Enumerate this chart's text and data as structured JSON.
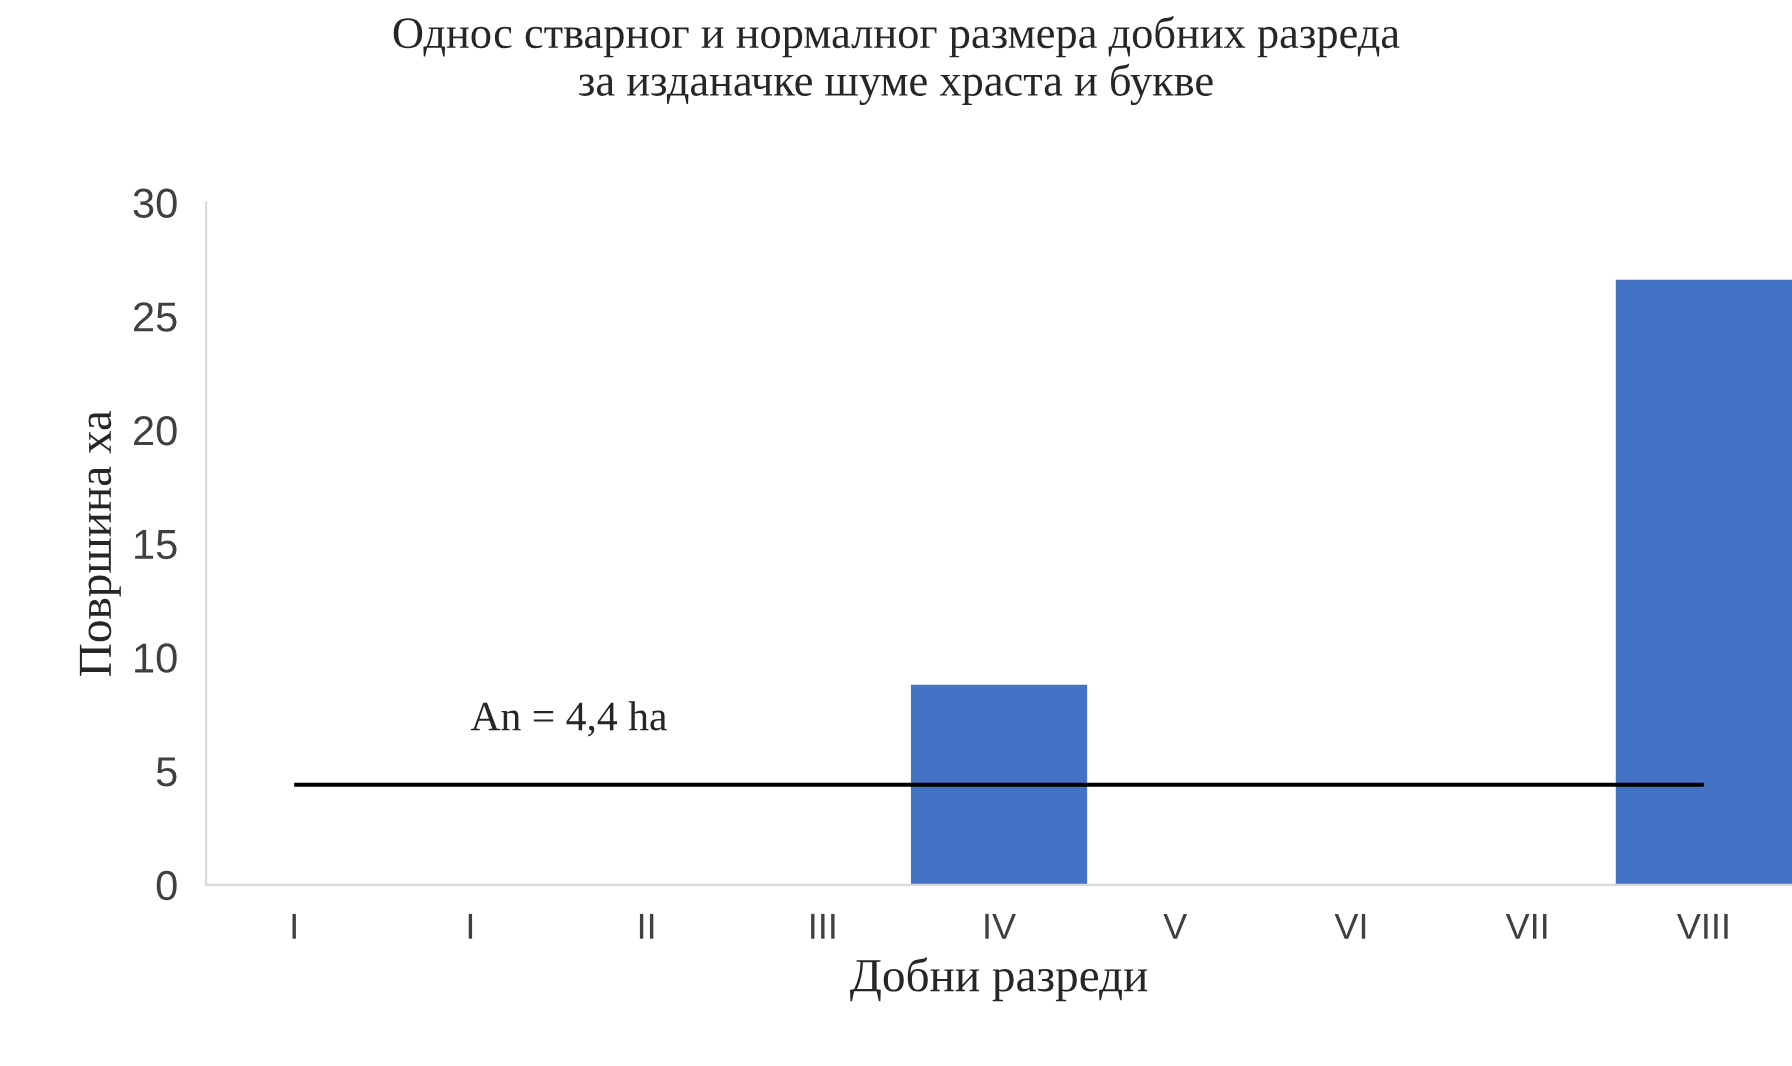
{
  "chart_data": {
    "type": "bar",
    "title": "Однос стварног и нормалног размера добних разреда\nза изданачке шуме храста и букве",
    "xlabel": "Добни разреди",
    "ylabel": "Површина ха",
    "categories": [
      "I",
      "I",
      "II",
      "III",
      "IV",
      "V",
      "VI",
      "VII",
      "VIII"
    ],
    "values": [
      0,
      0,
      0,
      0,
      8.8,
      0,
      0,
      0,
      26.6
    ],
    "color": "#4472c4",
    "ylim": [
      0,
      30
    ],
    "yticks": [
      0,
      5,
      10,
      15,
      20,
      25,
      30
    ],
    "grid": false,
    "legend": false,
    "ref_lines": [
      {
        "axis": "y",
        "value": 4.4,
        "label": "An = 4,4 ha",
        "color": "#000000"
      }
    ]
  }
}
